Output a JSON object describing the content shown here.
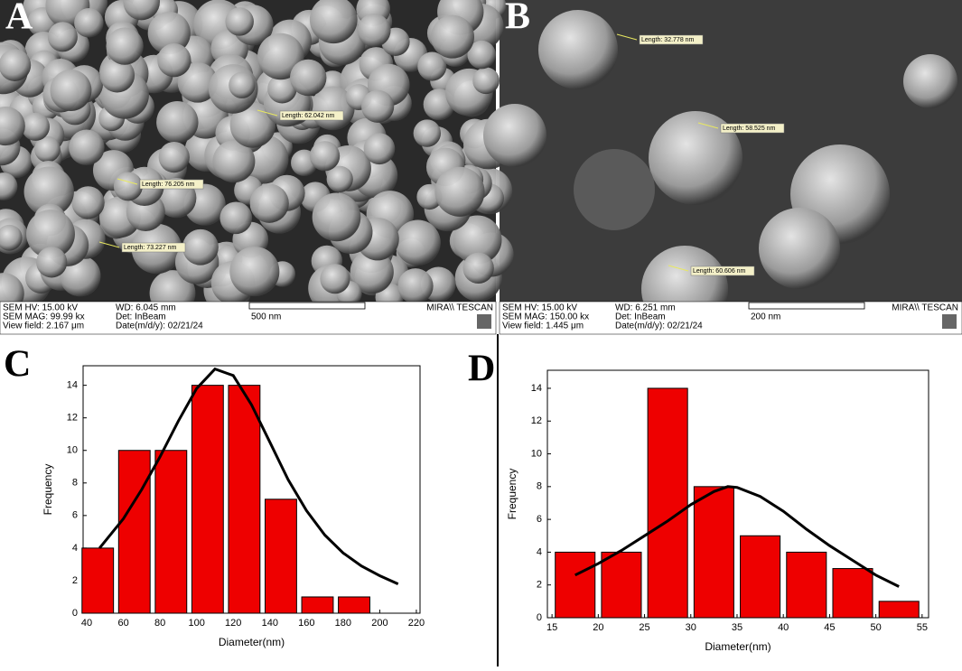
{
  "panels": [
    {
      "label": "A",
      "info": [
        "SEM HV: 15.00 kV",
        "WD: 6.045 mm",
        "SEM MAG: 99.99 kx",
        "Det: InBeam",
        "View field: 2.167 μm",
        "Date(m/d/y): 02/21/24"
      ],
      "scale": "500 nm",
      "brand": "MIRA\\\\ TESCAN",
      "lengths": [
        "Length: 62.042 nm",
        "Length: 76.205 nm",
        "Length: 73.227 nm"
      ]
    },
    {
      "label": "B",
      "info": [
        "SEM HV: 15.00 kV",
        "WD: 6.251 mm",
        "SEM MAG: 150.00 kx",
        "Det: InBeam",
        "View field: 1.445 μm",
        "Date(m/d/y): 02/21/24"
      ],
      "scale": "200 nm",
      "brand": "MIRA\\\\ TESCAN",
      "lengths": [
        "Length: 32.778 nm",
        "Length: 58.525 nm",
        "Length: 60.606 nm"
      ]
    }
  ],
  "chart_data": [
    {
      "type": "histogram",
      "label": "C",
      "xlabel": "Diameter(nm)",
      "ylabel": "Frequency",
      "color": "#ee0000",
      "bins": [
        36,
        56,
        76,
        96,
        116,
        136,
        156,
        176,
        196
      ],
      "values": [
        4,
        10,
        10,
        14,
        14,
        7,
        1,
        1
      ],
      "xlim": [
        38,
        222
      ],
      "xticks": [
        40,
        60,
        80,
        100,
        120,
        140,
        160,
        180,
        200,
        220
      ],
      "ylim": [
        0,
        15.2
      ],
      "yticks": [
        0,
        2,
        4,
        6,
        8,
        10,
        12,
        14
      ],
      "fit": {
        "x": [
          47,
          60,
          70,
          80,
          90,
          100,
          110,
          120,
          130,
          140,
          150,
          160,
          170,
          180,
          190,
          200,
          210
        ],
        "y": [
          4,
          5.8,
          7.6,
          9.6,
          11.8,
          13.8,
          15,
          14.6,
          12.8,
          10.5,
          8.2,
          6.3,
          4.8,
          3.7,
          2.9,
          2.3,
          1.8
        ]
      }
    },
    {
      "type": "histogram",
      "label": "D",
      "xlabel": "Diameter(nm)",
      "ylabel": "Frequency",
      "color": "#ee0000",
      "bins": [
        15,
        20,
        25,
        30,
        35,
        40,
        45,
        50,
        55
      ],
      "values": [
        4,
        4,
        14,
        8,
        5,
        4,
        3,
        1
      ],
      "xlim": [
        14.5,
        55.7
      ],
      "xticks": [
        15,
        20,
        25,
        30,
        35,
        40,
        45,
        50,
        55
      ],
      "ylim": [
        0,
        15.1
      ],
      "yticks": [
        0,
        2,
        4,
        6,
        8,
        10,
        12,
        14
      ],
      "fit": {
        "x": [
          17.5,
          20,
          22.5,
          25,
          27.5,
          30,
          32.5,
          34,
          35,
          37.5,
          40,
          42.5,
          45,
          47.5,
          50,
          52.5
        ],
        "y": [
          2.6,
          3.3,
          4.1,
          5,
          5.9,
          6.9,
          7.7,
          8,
          7.95,
          7.4,
          6.5,
          5.4,
          4.4,
          3.5,
          2.6,
          1.9
        ]
      }
    }
  ]
}
